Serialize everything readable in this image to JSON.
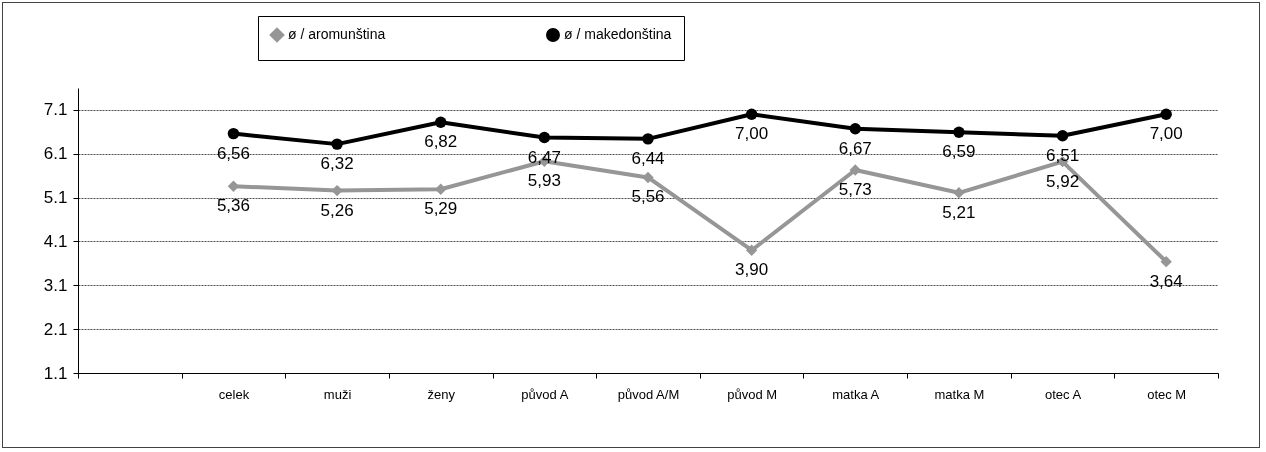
{
  "chart_data": {
    "type": "line",
    "categories": [
      null,
      "celek",
      "muži",
      "ženy",
      "původ A",
      "původ A/M",
      "původ M",
      "matka A",
      "matka M",
      "otec A",
      "otec M"
    ],
    "series": [
      {
        "name": "ø  / aromunština",
        "color": "#969696",
        "marker": "diamond",
        "values": [
          null,
          5.36,
          5.26,
          5.29,
          5.93,
          5.56,
          3.9,
          5.73,
          5.21,
          5.92,
          3.64
        ],
        "value_labels": [
          null,
          "5,36",
          "5,26",
          "5,29",
          "5,93",
          "5,56",
          "3,90",
          "5,73",
          "5,21",
          "5,92",
          "3,64"
        ]
      },
      {
        "name": "ø / makedonština",
        "color": "#000000",
        "marker": "circle",
        "values": [
          null,
          6.56,
          6.32,
          6.82,
          6.47,
          6.44,
          7.0,
          6.67,
          6.59,
          6.51,
          7.0
        ],
        "value_labels": [
          null,
          "6,56",
          "6,32",
          "6,82",
          "6,47",
          "6,44",
          "7,00",
          "6,67",
          "6,59",
          "6,51",
          "7,00"
        ]
      }
    ],
    "ylim": [
      1.1,
      7.6
    ],
    "yticks": [
      1.1,
      2.1,
      3.1,
      4.1,
      5.1,
      6.1,
      7.1
    ],
    "grid": "y",
    "legend": "top",
    "line_style": "solid"
  }
}
